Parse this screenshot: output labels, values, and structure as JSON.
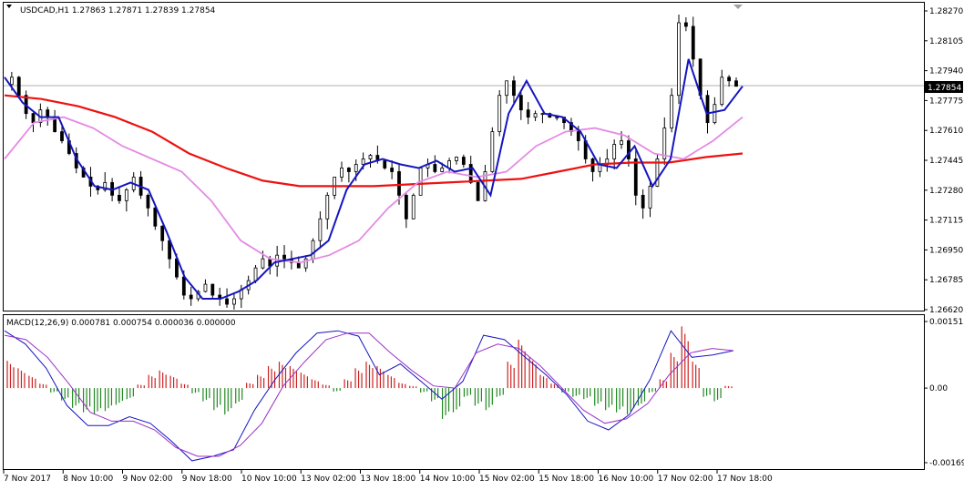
{
  "window": {
    "title": "USDCAD,H1  1.27863 1.27871 1.27839 1.27854",
    "current_price": "1.27854"
  },
  "chart_data": [
    {
      "type": "candlestick",
      "symbol": "USDCAD",
      "timeframe": "H1",
      "ohlc": {
        "open": 1.27863,
        "high": 1.27871,
        "low": 1.27839,
        "close": 1.27854
      },
      "ylim": [
        1.2662,
        1.2827
      ],
      "yticks": [
        "1.28270",
        "1.28105",
        "1.27940",
        "1.27775",
        "1.27610",
        "1.27445",
        "1.27280",
        "1.27115",
        "1.26950",
        "1.26785",
        "1.26620"
      ],
      "xticks": [
        "7 Nov 2017",
        "8 Nov 10:00",
        "9 Nov 02:00",
        "9 Nov 18:00",
        "10 Nov 10:00",
        "13 Nov 02:00",
        "13 Nov 18:00",
        "14 Nov 10:00",
        "15 Nov 02:00",
        "15 Nov 18:00",
        "16 Nov 10:00",
        "17 Nov 02:00",
        "17 Nov 18:00"
      ],
      "close_path": [
        1.2786,
        1.279,
        1.278,
        1.277,
        1.2765,
        1.2772,
        1.2768,
        1.276,
        1.2755,
        1.2748,
        1.274,
        1.2735,
        1.273,
        1.2728,
        1.2732,
        1.2725,
        1.2722,
        1.2728,
        1.2735,
        1.2725,
        1.2718,
        1.2708,
        1.27,
        1.269,
        1.268,
        1.267,
        1.2668,
        1.2672,
        1.2676,
        1.267,
        1.2668,
        1.2665,
        1.2668,
        1.2673,
        1.2678,
        1.2685,
        1.269,
        1.2686,
        1.2692,
        1.269,
        1.2688,
        1.2685,
        1.269,
        1.27,
        1.2712,
        1.2725,
        1.2735,
        1.274,
        1.2738,
        1.2742,
        1.2745,
        1.2747,
        1.2744,
        1.274,
        1.2738,
        1.2725,
        1.2712,
        1.2725,
        1.274,
        1.2742,
        1.2738,
        1.274,
        1.2744,
        1.2746,
        1.2742,
        1.2732,
        1.2722,
        1.2738,
        1.276,
        1.278,
        1.2788,
        1.278,
        1.2772,
        1.2768,
        1.277,
        1.277,
        1.2768,
        1.2768,
        1.2765,
        1.276,
        1.2755,
        1.2745,
        1.2738,
        1.2742,
        1.2745,
        1.2753,
        1.2755,
        1.2745,
        1.2725,
        1.2718,
        1.273,
        1.2745,
        1.2762,
        1.278,
        1.282,
        1.2818,
        1.28,
        1.278,
        1.2765,
        1.2775,
        1.279,
        1.2788,
        1.2785
      ],
      "series": [
        {
          "name": "",
          "color": "#ee1111",
          "values": [
            1.278,
            1.2778,
            1.2774,
            1.2768,
            1.276,
            1.2748,
            1.274,
            1.2733,
            1.273,
            1.273,
            1.273,
            1.2731,
            1.2732,
            1.2733,
            1.2734,
            1.2738,
            1.2742,
            1.2743,
            1.2743,
            1.2746,
            1.2748
          ]
        },
        {
          "name": "",
          "color": "#e48be4",
          "values": [
            1.2745,
            1.2765,
            1.2768,
            1.2762,
            1.2752,
            1.2745,
            1.2738,
            1.2722,
            1.27,
            1.269,
            1.2688,
            1.2692,
            1.27,
            1.2718,
            1.2732,
            1.2738,
            1.2735,
            1.2738,
            1.2752,
            1.276,
            1.2762,
            1.2758,
            1.2748,
            1.2745,
            1.2755,
            1.2768
          ]
        },
        {
          "name": "",
          "color": "#1515c0",
          "values": [
            1.279,
            1.2776,
            1.2768,
            1.2768,
            1.2745,
            1.273,
            1.2728,
            1.2732,
            1.2728,
            1.2705,
            1.268,
            1.2668,
            1.2668,
            1.2672,
            1.2678,
            1.2688,
            1.269,
            1.2692,
            1.27,
            1.2728,
            1.2742,
            1.2745,
            1.2742,
            1.274,
            1.2744,
            1.2738,
            1.274,
            1.2725,
            1.277,
            1.2788,
            1.277,
            1.2768,
            1.276,
            1.2742,
            1.274,
            1.2752,
            1.273,
            1.2745,
            1.28,
            1.277,
            1.2772,
            1.2785
          ]
        }
      ]
    },
    {
      "type": "histogram",
      "title": "MACD(12,26,9) 0.000781 0.000754 0.000036 0.000000",
      "ylim": [
        -0.001694,
        0.001512
      ],
      "yticks": [
        "0.001512",
        "0.00",
        "-0.001694"
      ],
      "histogram": [
        0.00062,
        0.00045,
        0.00028,
        0.0001,
        -0.0001,
        -0.00028,
        -0.00045,
        -0.00055,
        -0.0006,
        -0.00052,
        -0.00038,
        -0.00025,
        8e-05,
        0.0003,
        0.0004,
        0.00028,
        0.0001,
        -0.00012,
        -0.0003,
        -0.0005,
        -0.0006,
        -0.00035,
        0.00012,
        0.0003,
        0.0005,
        0.0006,
        0.0005,
        0.00035,
        0.0002,
        8e-05,
        -8e-05,
        0.0002,
        0.00045,
        0.0006,
        0.0005,
        0.0003,
        0.00012,
        5e-05,
        -0.0001,
        -0.0003,
        -0.0007,
        -0.00055,
        -0.0002,
        -0.0004,
        -0.0005,
        -0.0002,
        0.0006,
        0.0011,
        0.0007,
        0.0003,
        0.0001,
        -0.0001,
        -0.0002,
        -0.00025,
        -0.0004,
        -0.0005,
        -0.00055,
        -0.0006,
        -0.0004,
        -0.0001,
        0.0002,
        0.0008,
        0.0014,
        0.0006,
        -0.0002,
        -0.0003,
        5e-05
      ],
      "series": [
        {
          "name": "",
          "color": "#1515c0",
          "values": [
            0.0013,
            0.001,
            0.00045,
            -0.0004,
            -0.00085,
            -0.00085,
            -0.00065,
            -0.0008,
            -0.0012,
            -0.00165,
            -0.00155,
            -0.0014,
            -0.0005,
            0.0002,
            0.0008,
            0.00125,
            0.0013,
            0.00118,
            0.0003,
            0.00055,
            0.00015,
            -0.00025,
            0.00015,
            0.0012,
            0.0011,
            0.0007,
            0.0003,
            -0.00015,
            -0.00075,
            -0.00095,
            -0.0006,
            0.0002,
            0.0013,
            0.0007,
            0.00075,
            0.00085
          ]
        },
        {
          "name": "",
          "color": "#9a30c8",
          "values": [
            0.0012,
            0.0011,
            0.0007,
            0.0001,
            -0.00055,
            -0.00075,
            -0.00075,
            -0.00095,
            -0.00135,
            -0.00155,
            -0.00155,
            -0.0013,
            -0.0008,
            5e-05,
            0.0006,
            0.0011,
            0.00125,
            0.00125,
            0.0008,
            0.0004,
            5e-05,
            0.0,
            0.0008,
            0.001,
            0.0009,
            0.0005,
            0.0,
            -0.0005,
            -0.0008,
            -0.0007,
            -0.00035,
            0.0003,
            0.0008,
            0.0009,
            0.00085
          ]
        }
      ]
    }
  ]
}
